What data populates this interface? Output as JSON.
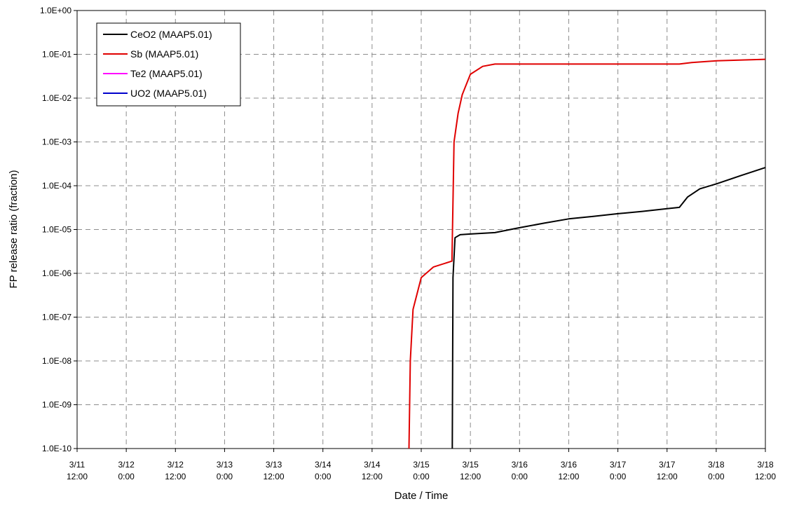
{
  "chart_data": {
    "type": "line",
    "title": "",
    "xlabel": "Date / Time",
    "ylabel": "FP release ratio (fraction)",
    "y_scale": "log",
    "ylim": [
      "1.0E-10",
      "1.0E+00"
    ],
    "y_ticks": [
      "1.0E+00",
      "1.0E-01",
      "1.0E-02",
      "1.0E-03",
      "1.0E-04",
      "1.0E-05",
      "1.0E-06",
      "1.0E-07",
      "1.0E-08",
      "1.0E-09",
      "1.0E-10"
    ],
    "xlim": [
      "3/11 12:00",
      "3/18 12:00"
    ],
    "x_ticks": [
      {
        "date": "3/11",
        "time": "12:00"
      },
      {
        "date": "3/12",
        "time": "0:00"
      },
      {
        "date": "3/12",
        "time": "12:00"
      },
      {
        "date": "3/13",
        "time": "0:00"
      },
      {
        "date": "3/13",
        "time": "12:00"
      },
      {
        "date": "3/14",
        "time": "0:00"
      },
      {
        "date": "3/14",
        "time": "12:00"
      },
      {
        "date": "3/15",
        "time": "0:00"
      },
      {
        "date": "3/15",
        "time": "12:00"
      },
      {
        "date": "3/16",
        "time": "0:00"
      },
      {
        "date": "3/16",
        "time": "12:00"
      },
      {
        "date": "3/17",
        "time": "0:00"
      },
      {
        "date": "3/17",
        "time": "12:00"
      },
      {
        "date": "3/18",
        "time": "0:00"
      },
      {
        "date": "3/18",
        "time": "12:00"
      }
    ],
    "grid": true,
    "legend_position": "top-left",
    "series": [
      {
        "name": "CeO2 (MAAP5.01)",
        "color": "#000000",
        "points": [
          [
            "3/15 07:35",
            1e-10
          ],
          [
            "3/15 07:45",
            8e-07
          ],
          [
            "3/15 08:15",
            6.5e-06
          ],
          [
            "3/15 09:30",
            7.6e-06
          ],
          [
            "3/15 12:00",
            7.9e-06
          ],
          [
            "3/15 18:00",
            8.5e-06
          ],
          [
            "3/16 00:00",
            1.1e-05
          ],
          [
            "3/16 06:00",
            1.4e-05
          ],
          [
            "3/16 12:00",
            1.75e-05
          ],
          [
            "3/16 18:00",
            2e-05
          ],
          [
            "3/17 00:00",
            2.3e-05
          ],
          [
            "3/17 06:00",
            2.6e-05
          ],
          [
            "3/17 12:00",
            3e-05
          ],
          [
            "3/17 15:00",
            3.2e-05
          ],
          [
            "3/17 17:00",
            5.5e-05
          ],
          [
            "3/17 20:00",
            8.5e-05
          ],
          [
            "3/18 00:00",
            0.00011
          ],
          [
            "3/18 06:00",
            0.00017
          ],
          [
            "3/18 12:00",
            0.00026
          ]
        ]
      },
      {
        "name": "Sb (MAAP5.01)",
        "color": "#e00000",
        "points": [
          [
            "3/14 21:00",
            1e-10
          ],
          [
            "3/14 21:20",
            1e-08
          ],
          [
            "3/14 22:00",
            1.5e-07
          ],
          [
            "3/15 00:00",
            8e-07
          ],
          [
            "3/15 03:00",
            1.4e-06
          ],
          [
            "3/15 07:30",
            1.9e-06
          ],
          [
            "3/15 08:00",
            0.001
          ],
          [
            "3/15 09:00",
            0.0045
          ],
          [
            "3/15 10:00",
            0.012
          ],
          [
            "3/15 12:00",
            0.035
          ],
          [
            "3/15 15:00",
            0.053
          ],
          [
            "3/15 18:00",
            0.06
          ],
          [
            "3/16 12:00",
            0.06
          ],
          [
            "3/17 15:00",
            0.06
          ],
          [
            "3/17 18:00",
            0.065
          ],
          [
            "3/18 00:00",
            0.071
          ],
          [
            "3/18 12:00",
            0.077
          ]
        ]
      },
      {
        "name": "Te2 (MAAP5.01)",
        "color": "#ff00ff",
        "points": []
      },
      {
        "name": "UO2 (MAAP5.01)",
        "color": "#0000cc",
        "points": []
      }
    ]
  }
}
